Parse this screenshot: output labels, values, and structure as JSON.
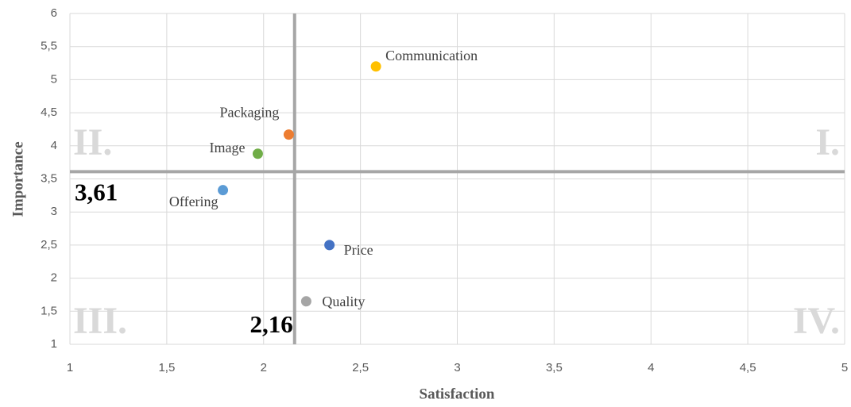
{
  "chart_data": {
    "type": "scatter",
    "xlabel": "Satisfaction",
    "ylabel": "Importance",
    "xlim": [
      1,
      5
    ],
    "ylim": [
      1,
      6
    ],
    "xticks": [
      1,
      {
        "value": 1.5,
        "label": "1,5"
      },
      2,
      {
        "value": 2.5,
        "label": "2,5"
      },
      3,
      {
        "value": 3.5,
        "label": "3,5"
      },
      4,
      {
        "value": 4.5,
        "label": "4,5"
      },
      5
    ],
    "yticks": [
      1,
      {
        "value": 1.5,
        "label": "1,5"
      },
      2,
      {
        "value": 2.5,
        "label": "2,5"
      },
      3,
      {
        "value": 3.5,
        "label": "3,5"
      },
      4,
      {
        "value": 4.5,
        "label": "4,5"
      },
      5,
      {
        "value": 5.5,
        "label": "5,5"
      },
      6
    ],
    "grid": true,
    "points": [
      {
        "name": "Communication",
        "color": "#ffc000",
        "x": 2.58,
        "y": 5.2
      },
      {
        "name": "Packaging",
        "color": "#ed7d31",
        "x": 2.13,
        "y": 4.17
      },
      {
        "name": "Image",
        "color": "#70ad47",
        "x": 1.97,
        "y": 3.88
      },
      {
        "name": "Offering",
        "color": "#5b9bd5",
        "x": 1.79,
        "y": 3.33
      },
      {
        "name": "Price",
        "color": "#4472c4",
        "x": 2.34,
        "y": 2.5
      },
      {
        "name": "Quality",
        "color": "#a5a5a5",
        "x": 2.22,
        "y": 1.65
      }
    ],
    "x_reference": {
      "value": 2.16,
      "label": "2,16"
    },
    "y_reference": {
      "value": 3.61,
      "label": "3,61"
    },
    "quadrant_labels": [
      "I.",
      "II.",
      "III.",
      "IV."
    ]
  }
}
